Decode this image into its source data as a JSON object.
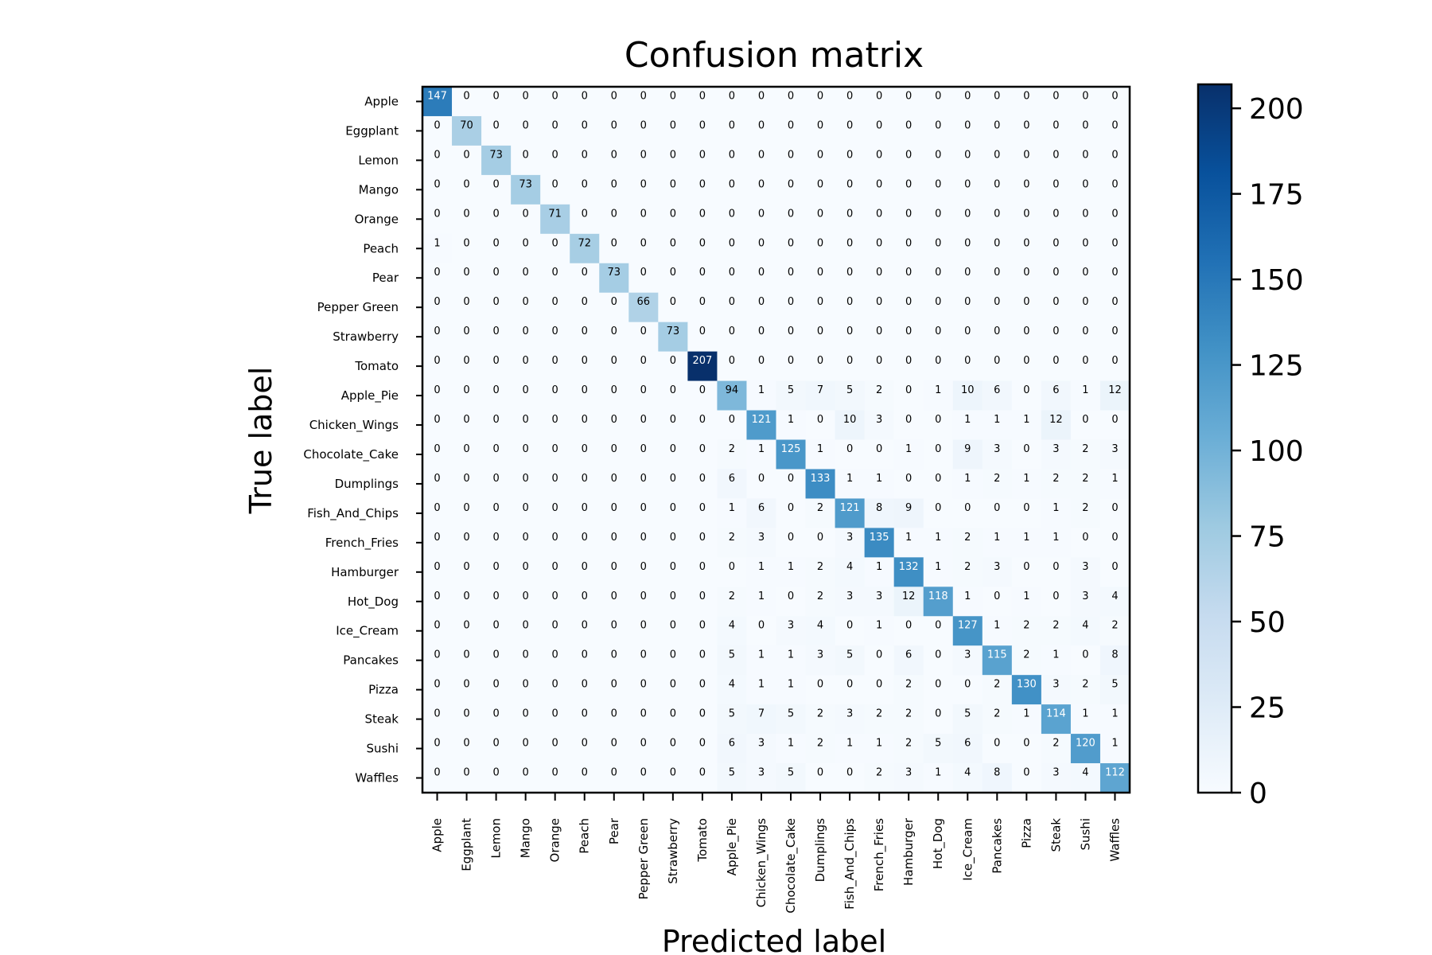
{
  "chart_data": {
    "type": "heatmap",
    "title": "Confusion matrix",
    "xlabel": "Predicted label",
    "ylabel": "True label",
    "x_categories": [
      "Apple",
      "Eggplant",
      "Lemon",
      "Mango",
      "Orange",
      "Peach",
      "Pear",
      "Pepper Green",
      "Strawberry",
      "Tomato",
      "Apple_Pie",
      "Chicken_Wings",
      "Chocolate_Cake",
      "Dumplings",
      "Fish_And_Chips",
      "French_Fries",
      "Hamburger",
      "Hot_Dog",
      "Ice_Cream",
      "Pancakes",
      "Pizza",
      "Steak",
      "Sushi",
      "Waffles"
    ],
    "y_categories": [
      "Apple",
      "Eggplant",
      "Lemon",
      "Mango",
      "Orange",
      "Peach",
      "Pear",
      "Pepper Green",
      "Strawberry",
      "Tomato",
      "Apple_Pie",
      "Chicken_Wings",
      "Chocolate_Cake",
      "Dumplings",
      "Fish_And_Chips",
      "French_Fries",
      "Hamburger",
      "Hot_Dog",
      "Ice_Cream",
      "Pancakes",
      "Pizza",
      "Steak",
      "Sushi",
      "Waffles"
    ],
    "values": [
      [
        147,
        0,
        0,
        0,
        0,
        0,
        0,
        0,
        0,
        0,
        0,
        0,
        0,
        0,
        0,
        0,
        0,
        0,
        0,
        0,
        0,
        0,
        0,
        0
      ],
      [
        0,
        70,
        0,
        0,
        0,
        0,
        0,
        0,
        0,
        0,
        0,
        0,
        0,
        0,
        0,
        0,
        0,
        0,
        0,
        0,
        0,
        0,
        0,
        0
      ],
      [
        0,
        0,
        73,
        0,
        0,
        0,
        0,
        0,
        0,
        0,
        0,
        0,
        0,
        0,
        0,
        0,
        0,
        0,
        0,
        0,
        0,
        0,
        0,
        0
      ],
      [
        0,
        0,
        0,
        73,
        0,
        0,
        0,
        0,
        0,
        0,
        0,
        0,
        0,
        0,
        0,
        0,
        0,
        0,
        0,
        0,
        0,
        0,
        0,
        0
      ],
      [
        0,
        0,
        0,
        0,
        71,
        0,
        0,
        0,
        0,
        0,
        0,
        0,
        0,
        0,
        0,
        0,
        0,
        0,
        0,
        0,
        0,
        0,
        0,
        0
      ],
      [
        1,
        0,
        0,
        0,
        0,
        72,
        0,
        0,
        0,
        0,
        0,
        0,
        0,
        0,
        0,
        0,
        0,
        0,
        0,
        0,
        0,
        0,
        0,
        0
      ],
      [
        0,
        0,
        0,
        0,
        0,
        0,
        73,
        0,
        0,
        0,
        0,
        0,
        0,
        0,
        0,
        0,
        0,
        0,
        0,
        0,
        0,
        0,
        0,
        0
      ],
      [
        0,
        0,
        0,
        0,
        0,
        0,
        0,
        66,
        0,
        0,
        0,
        0,
        0,
        0,
        0,
        0,
        0,
        0,
        0,
        0,
        0,
        0,
        0,
        0
      ],
      [
        0,
        0,
        0,
        0,
        0,
        0,
        0,
        0,
        73,
        0,
        0,
        0,
        0,
        0,
        0,
        0,
        0,
        0,
        0,
        0,
        0,
        0,
        0,
        0
      ],
      [
        0,
        0,
        0,
        0,
        0,
        0,
        0,
        0,
        0,
        207,
        0,
        0,
        0,
        0,
        0,
        0,
        0,
        0,
        0,
        0,
        0,
        0,
        0,
        0
      ],
      [
        0,
        0,
        0,
        0,
        0,
        0,
        0,
        0,
        0,
        0,
        94,
        1,
        5,
        7,
        5,
        2,
        0,
        1,
        10,
        6,
        0,
        6,
        1,
        12
      ],
      [
        0,
        0,
        0,
        0,
        0,
        0,
        0,
        0,
        0,
        0,
        0,
        121,
        1,
        0,
        10,
        3,
        0,
        0,
        1,
        1,
        1,
        12,
        0,
        0
      ],
      [
        0,
        0,
        0,
        0,
        0,
        0,
        0,
        0,
        0,
        0,
        2,
        1,
        125,
        1,
        0,
        0,
        1,
        0,
        9,
        3,
        0,
        3,
        2,
        3
      ],
      [
        0,
        0,
        0,
        0,
        0,
        0,
        0,
        0,
        0,
        0,
        6,
        0,
        0,
        133,
        1,
        1,
        0,
        0,
        1,
        2,
        1,
        2,
        2,
        1
      ],
      [
        0,
        0,
        0,
        0,
        0,
        0,
        0,
        0,
        0,
        0,
        1,
        6,
        0,
        2,
        121,
        8,
        9,
        0,
        0,
        0,
        0,
        1,
        2,
        0
      ],
      [
        0,
        0,
        0,
        0,
        0,
        0,
        0,
        0,
        0,
        0,
        2,
        3,
        0,
        0,
        3,
        135,
        1,
        1,
        2,
        1,
        1,
        1,
        0,
        0
      ],
      [
        0,
        0,
        0,
        0,
        0,
        0,
        0,
        0,
        0,
        0,
        0,
        1,
        1,
        2,
        4,
        1,
        132,
        1,
        2,
        3,
        0,
        0,
        3,
        0
      ],
      [
        0,
        0,
        0,
        0,
        0,
        0,
        0,
        0,
        0,
        0,
        2,
        1,
        0,
        2,
        3,
        3,
        12,
        118,
        1,
        0,
        1,
        0,
        3,
        4
      ],
      [
        0,
        0,
        0,
        0,
        0,
        0,
        0,
        0,
        0,
        0,
        4,
        0,
        3,
        4,
        0,
        1,
        0,
        0,
        127,
        1,
        2,
        2,
        4,
        2
      ],
      [
        0,
        0,
        0,
        0,
        0,
        0,
        0,
        0,
        0,
        0,
        5,
        1,
        1,
        3,
        5,
        0,
        6,
        0,
        3,
        115,
        2,
        1,
        0,
        8
      ],
      [
        0,
        0,
        0,
        0,
        0,
        0,
        0,
        0,
        0,
        0,
        4,
        1,
        1,
        0,
        0,
        0,
        2,
        0,
        0,
        2,
        130,
        3,
        2,
        5
      ],
      [
        0,
        0,
        0,
        0,
        0,
        0,
        0,
        0,
        0,
        0,
        5,
        7,
        5,
        2,
        3,
        2,
        2,
        0,
        5,
        2,
        1,
        114,
        1,
        1
      ],
      [
        0,
        0,
        0,
        0,
        0,
        0,
        0,
        0,
        0,
        0,
        6,
        3,
        1,
        2,
        1,
        1,
        2,
        5,
        6,
        0,
        0,
        2,
        120,
        1
      ],
      [
        0,
        0,
        0,
        0,
        0,
        0,
        0,
        0,
        0,
        0,
        5,
        3,
        5,
        0,
        0,
        2,
        3,
        1,
        4,
        8,
        0,
        3,
        4,
        112
      ]
    ],
    "colorbar": {
      "range": [
        0,
        207
      ],
      "ticks": [
        0,
        25,
        50,
        75,
        100,
        125,
        150,
        175,
        200
      ],
      "tick_labels": [
        "0",
        "25",
        "50",
        "75",
        "100",
        "125",
        "150",
        "175",
        "200"
      ],
      "colormap": "Blues",
      "colors": [
        "#f7fbff",
        "#deebf7",
        "#c6dbef",
        "#9ecae1",
        "#6baed6",
        "#4292c6",
        "#2171b5",
        "#08519c",
        "#08306b"
      ]
    },
    "grid": false,
    "cell_value_labels": true
  }
}
